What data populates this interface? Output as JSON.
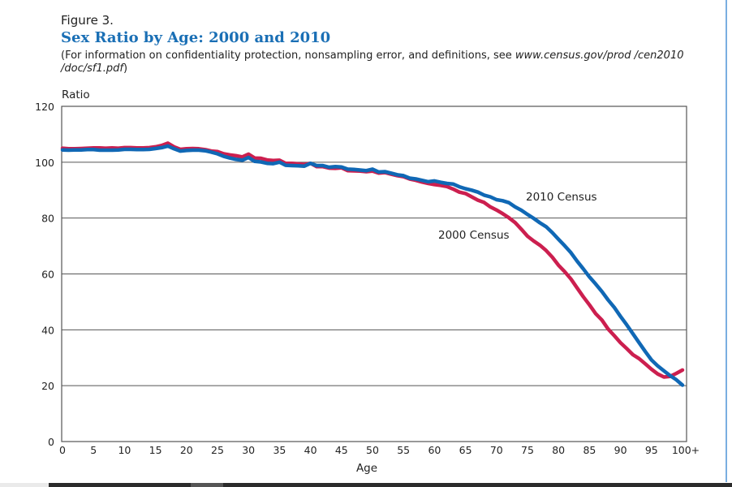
{
  "figure_label": "Figure 3.",
  "title": "Sex Ratio by Age: 2000 and 2010",
  "note_prefix": "(For information on confidentiality protection, nonsampling error, and definitions, see ",
  "note_link": "www.census.gov/prod /cen2010 /doc/sf1.pdf",
  "note_suffix": ")",
  "colors": {
    "title": "#1a6fb5",
    "census_2000": "#cc1f4f",
    "census_2010": "#1068b5",
    "grid": "#555555"
  },
  "chart_data": {
    "type": "line",
    "title": "Sex Ratio by Age: 2000 and 2010",
    "xlabel": "Age",
    "ylabel": "Ratio",
    "xlim": [
      0,
      100
    ],
    "ylim": [
      0,
      120
    ],
    "grid": true,
    "x_ticks": [
      0,
      5,
      10,
      15,
      20,
      25,
      30,
      35,
      40,
      45,
      50,
      55,
      60,
      65,
      70,
      75,
      80,
      85,
      90,
      95,
      100
    ],
    "x_tick_labels": [
      "0",
      "5",
      "10",
      "15",
      "20",
      "25",
      "30",
      "35",
      "40",
      "45",
      "50",
      "55",
      "60",
      "65",
      "70",
      "75",
      "80",
      "85",
      "90",
      "95",
      "100+"
    ],
    "y_ticks": [
      0,
      20,
      40,
      60,
      80,
      100,
      120
    ],
    "y_tick_labels": [
      "0",
      "20",
      "40",
      "60",
      "80",
      "100",
      "120"
    ],
    "x": [
      0,
      1,
      2,
      3,
      4,
      5,
      6,
      7,
      8,
      9,
      10,
      11,
      12,
      13,
      14,
      15,
      16,
      17,
      18,
      19,
      20,
      21,
      22,
      23,
      24,
      25,
      26,
      27,
      28,
      29,
      30,
      31,
      32,
      33,
      34,
      35,
      36,
      37,
      38,
      39,
      40,
      41,
      42,
      43,
      44,
      45,
      46,
      47,
      48,
      49,
      50,
      51,
      52,
      53,
      54,
      55,
      56,
      57,
      58,
      59,
      60,
      61,
      62,
      63,
      64,
      65,
      66,
      67,
      68,
      69,
      70,
      71,
      72,
      73,
      74,
      75,
      76,
      77,
      78,
      79,
      80,
      81,
      82,
      83,
      84,
      85,
      86,
      87,
      88,
      89,
      90,
      91,
      92,
      93,
      94,
      95,
      96,
      97,
      98,
      99,
      100
    ],
    "series": [
      {
        "name": "2000 Census",
        "label": "2000 Census",
        "values": [
          105.0,
          104.8,
          104.8,
          104.9,
          105.0,
          105.1,
          105.1,
          105.0,
          105.1,
          105.0,
          105.2,
          105.2,
          105.1,
          105.1,
          105.2,
          105.5,
          106.0,
          106.8,
          105.5,
          104.6,
          104.8,
          104.9,
          104.8,
          104.5,
          104.0,
          103.8,
          103.0,
          102.6,
          102.3,
          101.9,
          102.9,
          101.5,
          101.4,
          100.8,
          100.6,
          100.7,
          99.6,
          99.6,
          99.4,
          99.2,
          99.6,
          98.4,
          98.4,
          97.9,
          97.8,
          98.0,
          97.0,
          96.9,
          96.8,
          96.6,
          96.8,
          96.1,
          96.3,
          95.7,
          95.2,
          94.8,
          94.0,
          93.5,
          92.9,
          92.4,
          92.0,
          91.7,
          91.3,
          90.4,
          89.3,
          88.8,
          87.6,
          86.4,
          85.6,
          84.0,
          82.9,
          81.6,
          80.1,
          78.4,
          76.0,
          73.5,
          71.8,
          70.3,
          68.4,
          66.0,
          63.1,
          60.8,
          58.2,
          55.0,
          51.8,
          48.9,
          45.8,
          43.5,
          40.3,
          37.9,
          35.4,
          33.3,
          31.1,
          29.7,
          27.8,
          25.9,
          24.2,
          23.1,
          23.3,
          24.4,
          25.6
        ]
      },
      {
        "name": "2010 Census",
        "label": "2010 Census",
        "values": [
          104.4,
          104.3,
          104.4,
          104.4,
          104.5,
          104.5,
          104.3,
          104.3,
          104.3,
          104.4,
          104.6,
          104.6,
          104.5,
          104.5,
          104.6,
          104.9,
          105.2,
          105.8,
          104.8,
          104.0,
          104.2,
          104.3,
          104.3,
          104.1,
          103.6,
          103.0,
          102.1,
          101.5,
          101.0,
          100.7,
          101.7,
          100.3,
          100.1,
          99.6,
          99.5,
          100.0,
          98.9,
          98.8,
          98.7,
          98.6,
          99.6,
          98.8,
          98.8,
          98.2,
          98.4,
          98.3,
          97.5,
          97.4,
          97.2,
          97.0,
          97.5,
          96.5,
          96.6,
          96.1,
          95.5,
          95.2,
          94.3,
          94.0,
          93.5,
          93.0,
          93.3,
          92.8,
          92.4,
          92.2,
          91.2,
          90.5,
          90.0,
          89.3,
          88.2,
          87.6,
          86.6,
          86.2,
          85.5,
          84.0,
          82.8,
          81.3,
          79.9,
          78.3,
          76.9,
          74.8,
          72.4,
          70.1,
          67.6,
          64.6,
          61.8,
          58.9,
          56.4,
          53.7,
          50.7,
          48.0,
          44.8,
          41.8,
          38.6,
          35.4,
          32.2,
          29.2,
          27.1,
          25.3,
          23.6,
          22.1,
          20.2
        ]
      }
    ]
  }
}
